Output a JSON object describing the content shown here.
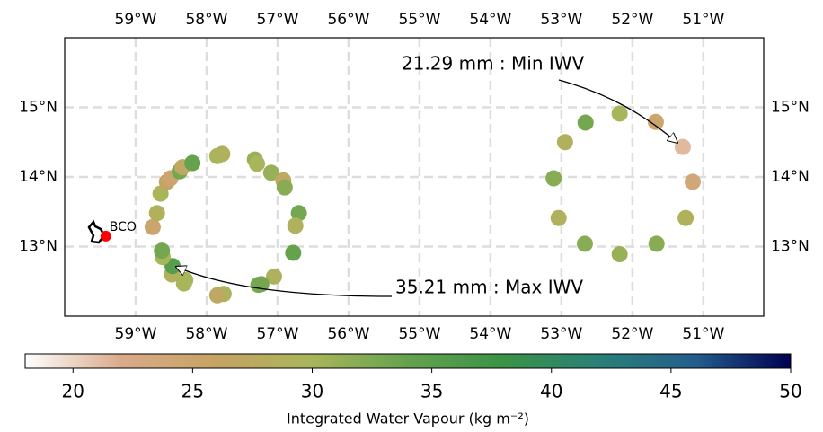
{
  "chart_data": {
    "type": "scatter",
    "xlim": [
      -60,
      -50.15
    ],
    "ylim": [
      12,
      16
    ],
    "xticks": [
      {
        "value": -59,
        "label": "59°W"
      },
      {
        "value": -58,
        "label": "58°W"
      },
      {
        "value": -57,
        "label": "57°W"
      },
      {
        "value": -56,
        "label": "56°W"
      },
      {
        "value": -55,
        "label": "55°W"
      },
      {
        "value": -54,
        "label": "54°W"
      },
      {
        "value": -53,
        "label": "53°W"
      },
      {
        "value": -52,
        "label": "52°W"
      },
      {
        "value": -51,
        "label": "51°W"
      }
    ],
    "yticks": [
      {
        "value": 13,
        "label": "13°N"
      },
      {
        "value": 14,
        "label": "14°N"
      },
      {
        "value": 15,
        "label": "15°N"
      }
    ],
    "grid": true,
    "x": [
      -58.76,
      -58.7,
      -58.65,
      -58.56,
      -58.51,
      -58.38,
      -58.34,
      -58.2,
      -57.85,
      -57.78,
      -57.32,
      -57.29,
      -57.09,
      -56.92,
      -56.9,
      -56.7,
      -56.75,
      -56.78,
      -57.05,
      -57.23,
      -57.27,
      -57.76,
      -57.85,
      -58.3,
      -58.32,
      -58.49,
      -58.48,
      -58.62,
      -58.63,
      -52.18,
      -51.67,
      -52.66,
      -52.95,
      -51.29,
      -53.11,
      -51.15,
      -53.04,
      -51.25,
      -52.67,
      -51.66,
      -52.18
    ],
    "y": [
      13.28,
      13.48,
      13.76,
      13.93,
      13.98,
      14.08,
      14.14,
      14.2,
      14.3,
      14.33,
      14.25,
      14.19,
      14.06,
      13.95,
      13.85,
      13.48,
      13.3,
      12.91,
      12.57,
      12.46,
      12.45,
      12.32,
      12.3,
      12.52,
      12.47,
      12.6,
      12.72,
      12.85,
      12.94,
      14.91,
      14.79,
      14.78,
      14.5,
      14.43,
      13.98,
      13.93,
      13.41,
      13.41,
      13.04,
      13.04,
      12.89
    ],
    "values": [
      25,
      29,
      30,
      26,
      25,
      33,
      27,
      34,
      30,
      29,
      31,
      30,
      31,
      27,
      32,
      33,
      29,
      34,
      29,
      33,
      33,
      30,
      27,
      30,
      30,
      29,
      35.21,
      30,
      33,
      30,
      25,
      33,
      29,
      21.29,
      32,
      24,
      29,
      29,
      32,
      32,
      31
    ],
    "site": {
      "name": "BCO",
      "x": -59.42,
      "y": 13.15,
      "color": "#ff0000"
    },
    "annotations": [
      "21.29 mm : Min IWV",
      "35.21 mm : Max IWV"
    ],
    "colorbar": {
      "label": "Integrated Water Vapour (kg m⁻²)",
      "clim": [
        18,
        50
      ],
      "ticks": [
        20,
        25,
        30,
        35,
        40,
        45,
        50
      ],
      "colormap": [
        "#ffffff",
        "#d9aa8a",
        "#c6a363",
        "#a9b55a",
        "#64a24e",
        "#3a9346",
        "#2a8078",
        "#245e8c",
        "#000050"
      ]
    }
  }
}
